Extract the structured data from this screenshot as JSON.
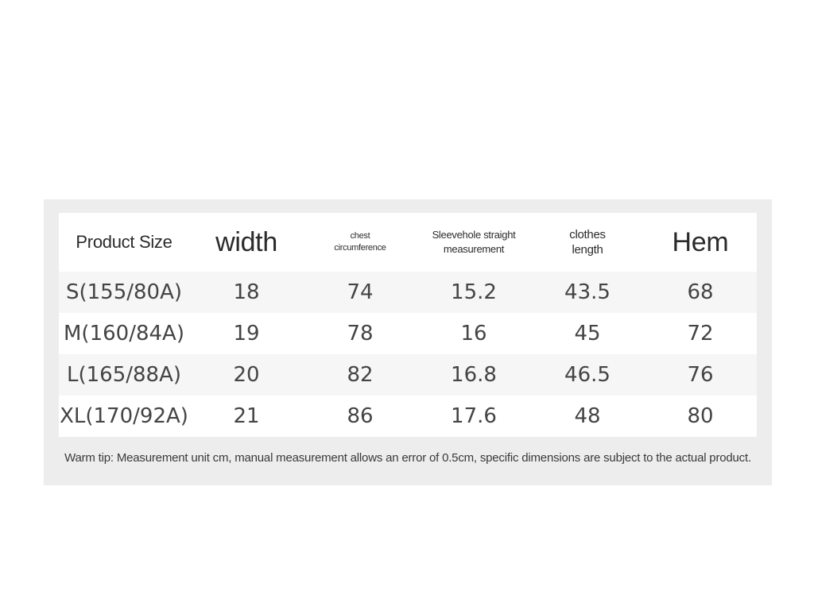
{
  "table": {
    "headers": [
      "Product Size",
      "width",
      "chest\ncircumference",
      "Sleevehole straight\nmeasurement",
      "clothes\nlength",
      "Hem"
    ],
    "rows": [
      [
        "S(155/80A)",
        "18",
        "74",
        "15.2",
        "43.5",
        "68"
      ],
      [
        "M(160/84A)",
        "19",
        "78",
        "16",
        "45",
        "72"
      ],
      [
        "L(165/88A)",
        "20",
        "82",
        "16.8",
        "46.5",
        "76"
      ],
      [
        "XL(170/92A)",
        "21",
        "86",
        "17.6",
        "48",
        "80"
      ]
    ]
  },
  "tip": "Warm tip: Measurement unit cm, manual measurement allows an error of 0.5cm, specific dimensions are subject to the actual product."
}
